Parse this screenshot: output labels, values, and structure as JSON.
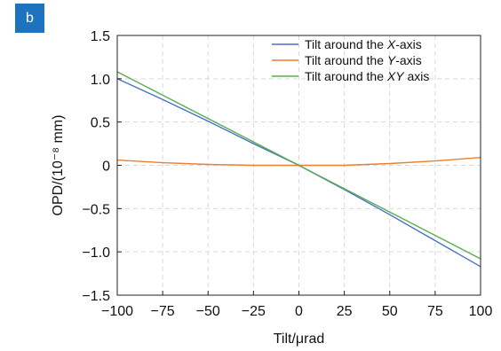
{
  "panel_label": "b",
  "chart_data": {
    "type": "line",
    "xlabel": "Tilt/μrad",
    "ylabel": "OPD/(10⁻⁸ mm)",
    "xlim": [
      -100,
      100
    ],
    "ylim": [
      -1.5,
      1.5
    ],
    "x_ticks": [
      -100,
      -75,
      -50,
      -25,
      0,
      25,
      50,
      75,
      100
    ],
    "x_tick_labels": [
      "−100",
      "−75",
      "−50",
      "−25",
      "0",
      "25",
      "50",
      "75",
      "100"
    ],
    "y_ticks": [
      1.5,
      1.0,
      0.5,
      0,
      -0.5,
      -1.0,
      -1.5
    ],
    "y_tick_labels": [
      "1.5",
      "1.0",
      "0.5",
      "0",
      "−0.5",
      "−1.0",
      "−1.5"
    ],
    "grid": true,
    "legend_position": "top-right",
    "x": [
      -100,
      -75,
      -50,
      -25,
      0,
      25,
      50,
      75,
      100
    ],
    "series": [
      {
        "name_parts": [
          "Tilt around the ",
          "X",
          "-axis"
        ],
        "color": "#4472c4",
        "values": [
          1.0,
          0.76,
          0.51,
          0.25,
          0.0,
          -0.28,
          -0.57,
          -0.87,
          -1.17
        ]
      },
      {
        "name_parts": [
          "Tilt around the ",
          "Y",
          "-axis"
        ],
        "color": "#ed7d31",
        "values": [
          0.06,
          0.03,
          0.01,
          0.0,
          0.0,
          0.0,
          0.02,
          0.05,
          0.09
        ]
      },
      {
        "name_parts": [
          "Tilt around the ",
          "XY",
          " axis"
        ],
        "color": "#5cad4f",
        "values": [
          1.08,
          0.81,
          0.54,
          0.27,
          0.0,
          -0.27,
          -0.54,
          -0.81,
          -1.08
        ]
      }
    ]
  }
}
